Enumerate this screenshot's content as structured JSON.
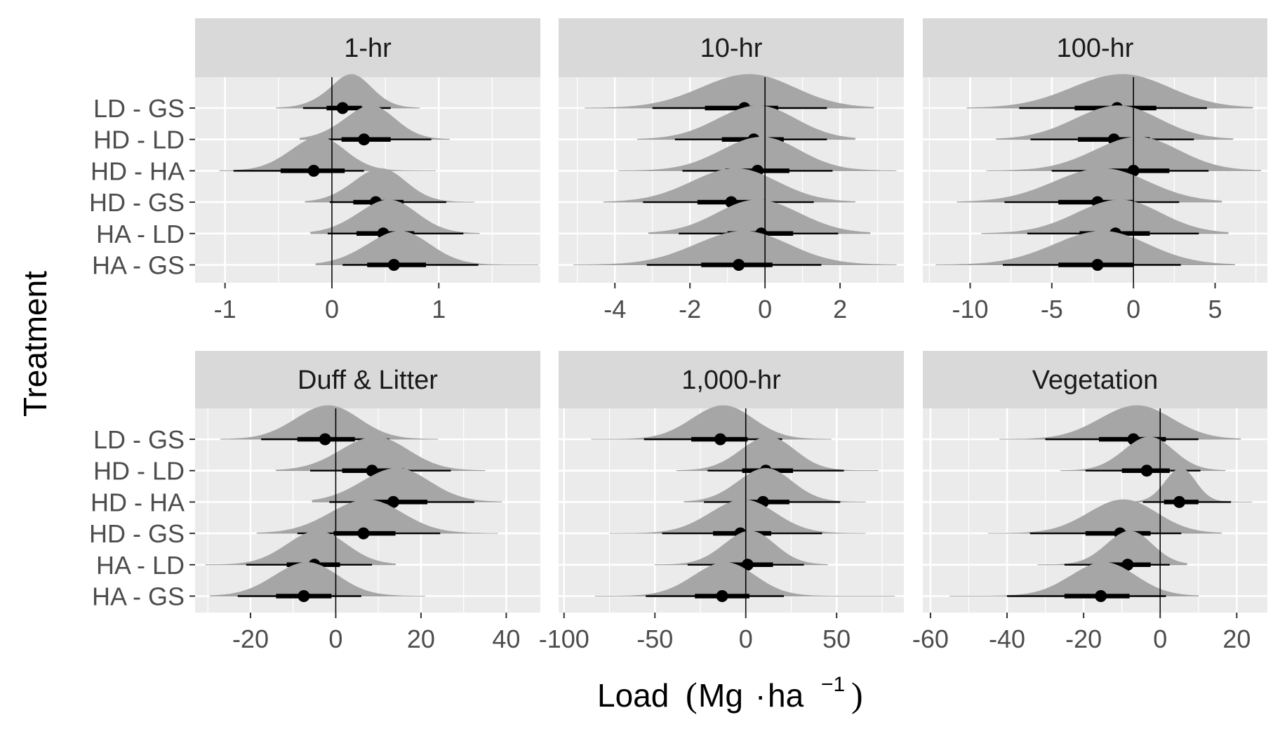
{
  "chart_data": {
    "type": "halfeye",
    "xlabel": "Load",
    "xlabel_unit": {
      "main": "Mg",
      "dot": "·",
      "sub": "ha",
      "exp": "−1"
    },
    "ylabel": "Treatment",
    "rows": [
      "LD - GS",
      "HD - LD",
      "HD - HA",
      "HD - GS",
      "HA - LD",
      "HA - GS"
    ],
    "colors": {
      "panel_bg": "#ebebeb",
      "grid": "#ffffff",
      "strip_bg": "#d9d9d9",
      "density": "#a6a6a6",
      "interval": "#000000",
      "zero_line": "#000000"
    },
    "panels": [
      {
        "title": "1-hr",
        "xlim": [
          -1.28,
          1.95
        ],
        "xticks": [
          -1,
          0,
          1
        ],
        "xtick_labels": [
          "-1",
          "0",
          "1"
        ],
        "series": [
          {
            "label": "LD - GS",
            "median": 0.1,
            "ci66": [
              -0.05,
              0.28
            ],
            "ci95": [
              -0.27,
              0.55
            ],
            "range": [
              -0.52,
              0.82
            ],
            "sd": 0.22,
            "skew": 0.5
          },
          {
            "label": "HD - LD",
            "median": 0.3,
            "ci66": [
              0.09,
              0.55
            ],
            "ci95": [
              -0.18,
              0.93
            ],
            "range": [
              -0.3,
              1.1
            ],
            "sd": 0.25,
            "skew": 0.3
          },
          {
            "label": "HD - HA",
            "median": -0.17,
            "ci66": [
              -0.48,
              0.12
            ],
            "ci95": [
              -0.92,
              0.3
            ],
            "range": [
              -1.05,
              0.97
            ],
            "sd": 0.26,
            "skew": 0.2
          },
          {
            "label": "HD - GS",
            "median": 0.41,
            "ci66": [
              0.2,
              0.67
            ],
            "ci95": [
              -0.02,
              1.07
            ],
            "range": [
              -0.25,
              1.33
            ],
            "sd": 0.25,
            "skew": 0.2
          },
          {
            "label": "HA - LD",
            "median": 0.48,
            "ci66": [
              0.23,
              0.77
            ],
            "ci95": [
              -0.04,
              1.23
            ],
            "range": [
              -0.2,
              1.38
            ],
            "sd": 0.28,
            "skew": 0.2
          },
          {
            "label": "HA - GS",
            "median": 0.58,
            "ci66": [
              0.33,
              0.88
            ],
            "ci95": [
              0.1,
              1.37
            ],
            "range": [
              -0.15,
              1.93
            ],
            "sd": 0.3,
            "skew": 0.2
          }
        ]
      },
      {
        "title": "10-hr",
        "xlim": [
          -5.5,
          3.7
        ],
        "xticks": [
          -4,
          -2,
          0,
          2
        ],
        "xtick_labels": [
          "-4",
          "-2",
          "0",
          "2"
        ],
        "series": [
          {
            "label": "LD - GS",
            "median": -0.55,
            "ci66": [
              -1.6,
              0.35
            ],
            "ci95": [
              -3.0,
              1.65
            ],
            "range": [
              -4.8,
              2.9
            ],
            "sd": 1.25,
            "skew": 0.1
          },
          {
            "label": "HD - LD",
            "median": -0.3,
            "ci66": [
              -1.15,
              0.5
            ],
            "ci95": [
              -2.4,
              1.65
            ],
            "range": [
              -3.4,
              2.4
            ],
            "sd": 1.05,
            "skew": 0.1
          },
          {
            "label": "HD - HA",
            "median": -0.2,
            "ci66": [
              -1.05,
              0.65
            ],
            "ci95": [
              -2.2,
              1.8
            ],
            "range": [
              -3.9,
              3.5
            ],
            "sd": 1.05,
            "skew": 0.1
          },
          {
            "label": "HD - GS",
            "median": -0.9,
            "ci66": [
              -1.8,
              0.0
            ],
            "ci95": [
              -3.25,
              1.3
            ],
            "range": [
              -4.3,
              2.4
            ],
            "sd": 1.15,
            "skew": 0.1
          },
          {
            "label": "HA - LD",
            "median": -0.1,
            "ci66": [
              -1.0,
              0.75
            ],
            "ci95": [
              -2.3,
              1.95
            ],
            "range": [
              -3.1,
              2.8
            ],
            "sd": 1.1,
            "skew": -0.1
          },
          {
            "label": "HA - GS",
            "median": -0.7,
            "ci66": [
              -1.7,
              0.2
            ],
            "ci95": [
              -3.15,
              1.5
            ],
            "range": [
              -5.1,
              3.5
            ],
            "sd": 1.25,
            "skew": 0.1
          }
        ]
      },
      {
        "title": "100-hr",
        "xlim": [
          -12.9,
          8.2
        ],
        "xticks": [
          -10,
          -5,
          0,
          5
        ],
        "xtick_labels": [
          "-10",
          "-5",
          "0",
          "5"
        ],
        "series": [
          {
            "label": "LD - GS",
            "median": -1.0,
            "ci66": [
              -3.6,
              1.4
            ],
            "ci95": [
              -7.0,
              4.5
            ],
            "range": [
              -10.2,
              7.3
            ],
            "sd": 3.0,
            "skew": 0.1
          },
          {
            "label": "HD - LD",
            "median": -1.2,
            "ci66": [
              -3.4,
              1.0
            ],
            "ci95": [
              -6.3,
              3.7
            ],
            "range": [
              -8.4,
              6.1
            ],
            "sd": 2.6,
            "skew": 0.1
          },
          {
            "label": "HD - HA",
            "median": 0.0,
            "ci66": [
              -2.1,
              2.2
            ],
            "ci95": [
              -5.0,
              4.6
            ],
            "range": [
              -9.0,
              7.8
            ],
            "sd": 2.6,
            "skew": 0.1
          },
          {
            "label": "HD - GS",
            "median": -2.2,
            "ci66": [
              -4.6,
              0.0
            ],
            "ci95": [
              -7.9,
              2.8
            ],
            "range": [
              -10.8,
              5.4
            ],
            "sd": 2.9,
            "skew": 0.1
          },
          {
            "label": "HA - LD",
            "median": -1.1,
            "ci66": [
              -3.3,
              1.0
            ],
            "ci95": [
              -6.5,
              4.0
            ],
            "range": [
              -9.3,
              5.8
            ],
            "sd": 2.6,
            "skew": 0.1
          },
          {
            "label": "HA - GS",
            "median": -2.2,
            "ci66": [
              -4.6,
              0.0
            ],
            "ci95": [
              -8.0,
              2.9
            ],
            "range": [
              -12.1,
              6.2
            ],
            "sd": 2.9,
            "skew": 0.1
          }
        ]
      },
      {
        "title": "Duff & Litter",
        "xlim": [
          -33,
          48
        ],
        "xticks": [
          -20,
          0,
          20,
          40
        ],
        "xtick_labels": [
          "-20",
          "0",
          "20",
          "40"
        ],
        "series": [
          {
            "label": "LD - GS",
            "median": -2.5,
            "ci66": [
              -9.0,
              4.5
            ],
            "ci95": [
              -17.5,
              12.5
            ],
            "range": [
              -27.0,
              24.0
            ],
            "sd": 7.5,
            "skew": 0.1
          },
          {
            "label": "HD - LD",
            "median": 8.5,
            "ci66": [
              1.5,
              16.0
            ],
            "ci95": [
              -6.0,
              27.0
            ],
            "range": [
              -14.0,
              35.0
            ],
            "sd": 8.0,
            "skew": 0.1
          },
          {
            "label": "HD - HA",
            "median": 13.5,
            "ci66": [
              6.5,
              21.5
            ],
            "ci95": [
              -1.5,
              32.5
            ],
            "range": [
              -5.5,
              39.0
            ],
            "sd": 8.0,
            "skew": 0.1
          },
          {
            "label": "HD - GS",
            "median": 6.5,
            "ci66": [
              -0.5,
              14.0
            ],
            "ci95": [
              -9.0,
              24.5
            ],
            "range": [
              -18.5,
              38.0
            ],
            "sd": 8.5,
            "skew": 0.1
          },
          {
            "label": "HA - LD",
            "median": -5.0,
            "ci66": [
              -11.5,
              1.0
            ],
            "ci95": [
              -21.0,
              8.5
            ],
            "range": [
              -30.5,
              14.0
            ],
            "sd": 7.0,
            "skew": 0.1
          },
          {
            "label": "HA - GS",
            "median": -7.5,
            "ci66": [
              -14.0,
              -1.0
            ],
            "ci95": [
              -23.0,
              6.0
            ],
            "range": [
              -29.5,
              21.0
            ],
            "sd": 7.5,
            "skew": 0.1
          }
        ]
      },
      {
        "title": "1,000-hr",
        "xlim": [
          -103,
          87
        ],
        "xticks": [
          -100,
          -50,
          0,
          50
        ],
        "xtick_labels": [
          "-100",
          "-50",
          "0",
          "50"
        ],
        "series": [
          {
            "label": "LD - GS",
            "median": -14.0,
            "ci66": [
              -30.0,
              1.0
            ],
            "ci95": [
              -56.0,
              20.0
            ],
            "range": [
              -85.0,
              47.0
            ],
            "sd": 17.0,
            "skew": 0.1
          },
          {
            "label": "HD - LD",
            "median": 11.0,
            "ci66": [
              -2.0,
              26.0
            ],
            "ci95": [
              -21.0,
              54.0
            ],
            "range": [
              -38.0,
              73.0
            ],
            "sd": 15.0,
            "skew": 0.1
          },
          {
            "label": "HD - HA",
            "median": 9.5,
            "ci66": [
              -3.0,
              24.0
            ],
            "ci95": [
              -23.0,
              52.0
            ],
            "range": [
              -34.0,
              66.0
            ],
            "sd": 15.0,
            "skew": 0.1
          },
          {
            "label": "HD - GS",
            "median": -3.0,
            "ci66": [
              -18.0,
              14.0
            ],
            "ci95": [
              -46.0,
              42.0
            ],
            "range": [
              -75.0,
              66.0
            ],
            "sd": 18.0,
            "skew": 0.1
          },
          {
            "label": "HA - LD",
            "median": 1.0,
            "ci66": [
              -11.0,
              15.0
            ],
            "ci95": [
              -32.0,
              32.0
            ],
            "range": [
              -50.0,
              45.0
            ],
            "sd": 14.0,
            "skew": 0.1
          },
          {
            "label": "HA - GS",
            "median": -13.0,
            "ci66": [
              -28.0,
              2.0
            ],
            "ci95": [
              -55.0,
              21.0
            ],
            "range": [
              -83.0,
              82.0
            ],
            "sd": 17.0,
            "skew": 0.1
          }
        ]
      },
      {
        "title": "Vegetation",
        "xlim": [
          -62,
          28
        ],
        "xticks": [
          -60,
          -40,
          -20,
          0,
          20
        ],
        "xtick_labels": [
          "-60",
          "-40",
          "-20",
          "0",
          "20"
        ],
        "series": [
          {
            "label": "LD - GS",
            "median": -7.0,
            "ci66": [
              -16.0,
              1.5
            ],
            "ci95": [
              -30.0,
              10.0
            ],
            "range": [
              -42.0,
              21.0
            ],
            "sd": 9.5,
            "skew": 0.1
          },
          {
            "label": "HD - LD",
            "median": -3.5,
            "ci66": [
              -10.0,
              2.5
            ],
            "ci95": [
              -19.5,
              10.5
            ],
            "range": [
              -26.0,
              17.0
            ],
            "sd": 6.5,
            "skew": 0.1
          },
          {
            "label": "HD - HA",
            "median": 5.0,
            "ci66": [
              1.0,
              10.0
            ],
            "ci95": [
              -4.5,
              18.5
            ],
            "range": [
              -8.0,
              24.0
            ],
            "sd": 4.0,
            "skew": 0.1
          },
          {
            "label": "HD - GS",
            "median": -10.5,
            "ci66": [
              -19.5,
              -2.5
            ],
            "ci95": [
              -34.0,
              5.5
            ],
            "range": [
              -45.0,
              16.0
            ],
            "sd": 9.0,
            "skew": 0.1
          },
          {
            "label": "HA - LD",
            "median": -8.5,
            "ci66": [
              -15.0,
              -2.5
            ],
            "ci95": [
              -25.0,
              2.5
            ],
            "range": [
              -32.0,
              7.0
            ],
            "sd": 6.0,
            "skew": 0.1
          },
          {
            "label": "HA - GS",
            "median": -15.5,
            "ci66": [
              -25.0,
              -8.0
            ],
            "ci95": [
              -40.0,
              1.5
            ],
            "range": [
              -55.0,
              10.0
            ],
            "sd": 8.5,
            "skew": 0.1
          }
        ]
      }
    ]
  }
}
